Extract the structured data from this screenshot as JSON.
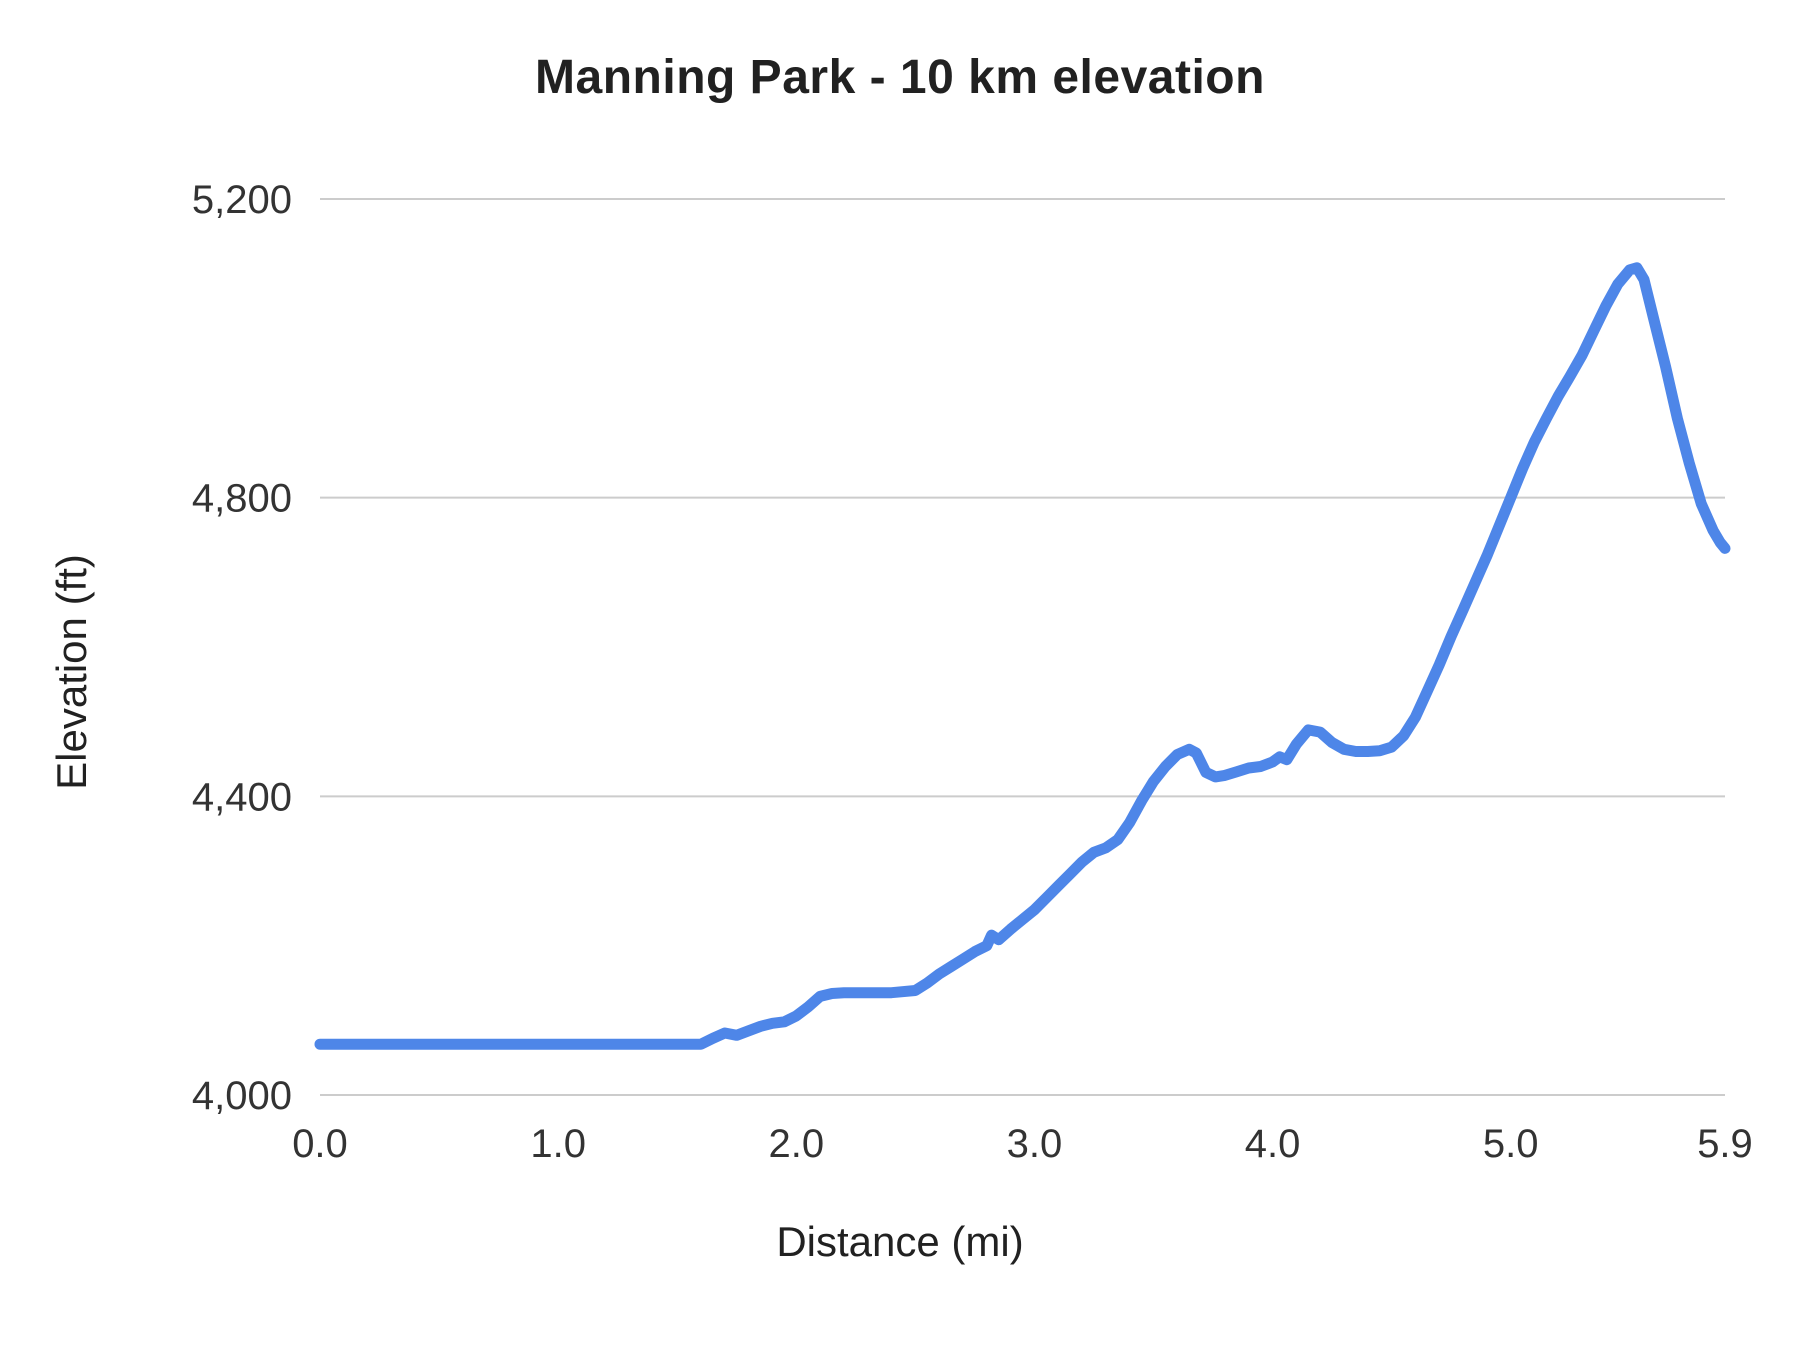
{
  "title": "Manning Park - 10 km  elevation",
  "chart_data": {
    "type": "line",
    "title": "Manning Park - 10 km  elevation",
    "xlabel": "Distance (mi)",
    "ylabel": "Elevation (ft)",
    "xlim": [
      0,
      5.9
    ],
    "ylim": [
      4000,
      5200
    ],
    "x_ticks": [
      0.0,
      1.0,
      2.0,
      3.0,
      4.0,
      5.0,
      5.9
    ],
    "x_tick_labels": [
      "0.0",
      "1.0",
      "2.0",
      "3.0",
      "4.0",
      "5.0",
      "5.9"
    ],
    "y_ticks": [
      4000,
      4400,
      4800,
      5200
    ],
    "y_tick_labels": [
      "4,000",
      "4,400",
      "4,800",
      "5,200"
    ],
    "grid": "horizontal",
    "legend": "none",
    "line_color": "#4e86e8",
    "grid_color": "#cccccc",
    "series": [
      {
        "name": "Elevation",
        "points": [
          [
            0.0,
            4068
          ],
          [
            0.1,
            4068
          ],
          [
            0.2,
            4068
          ],
          [
            0.3,
            4068
          ],
          [
            0.4,
            4068
          ],
          [
            0.5,
            4068
          ],
          [
            0.6,
            4068
          ],
          [
            0.7,
            4068
          ],
          [
            0.8,
            4068
          ],
          [
            0.9,
            4068
          ],
          [
            1.0,
            4068
          ],
          [
            1.1,
            4068
          ],
          [
            1.2,
            4068
          ],
          [
            1.3,
            4068
          ],
          [
            1.4,
            4068
          ],
          [
            1.5,
            4068
          ],
          [
            1.6,
            4068
          ],
          [
            1.65,
            4076
          ],
          [
            1.7,
            4083
          ],
          [
            1.75,
            4080
          ],
          [
            1.8,
            4086
          ],
          [
            1.85,
            4092
          ],
          [
            1.9,
            4096
          ],
          [
            1.95,
            4098
          ],
          [
            2.0,
            4106
          ],
          [
            2.05,
            4118
          ],
          [
            2.1,
            4132
          ],
          [
            2.15,
            4136
          ],
          [
            2.2,
            4137
          ],
          [
            2.3,
            4137
          ],
          [
            2.4,
            4137
          ],
          [
            2.5,
            4140
          ],
          [
            2.55,
            4150
          ],
          [
            2.6,
            4162
          ],
          [
            2.65,
            4172
          ],
          [
            2.7,
            4182
          ],
          [
            2.75,
            4192
          ],
          [
            2.8,
            4200
          ],
          [
            2.82,
            4214
          ],
          [
            2.85,
            4208
          ],
          [
            2.9,
            4222
          ],
          [
            2.95,
            4235
          ],
          [
            3.0,
            4248
          ],
          [
            3.05,
            4264
          ],
          [
            3.1,
            4280
          ],
          [
            3.15,
            4296
          ],
          [
            3.2,
            4312
          ],
          [
            3.25,
            4325
          ],
          [
            3.3,
            4331
          ],
          [
            3.35,
            4342
          ],
          [
            3.4,
            4365
          ],
          [
            3.45,
            4394
          ],
          [
            3.5,
            4420
          ],
          [
            3.55,
            4440
          ],
          [
            3.6,
            4456
          ],
          [
            3.65,
            4463
          ],
          [
            3.68,
            4458
          ],
          [
            3.72,
            4432
          ],
          [
            3.76,
            4426
          ],
          [
            3.8,
            4428
          ],
          [
            3.85,
            4433
          ],
          [
            3.9,
            4438
          ],
          [
            3.95,
            4440
          ],
          [
            4.0,
            4446
          ],
          [
            4.03,
            4453
          ],
          [
            4.06,
            4449
          ],
          [
            4.1,
            4470
          ],
          [
            4.15,
            4489
          ],
          [
            4.2,
            4486
          ],
          [
            4.25,
            4472
          ],
          [
            4.3,
            4463
          ],
          [
            4.35,
            4460
          ],
          [
            4.4,
            4460
          ],
          [
            4.45,
            4461
          ],
          [
            4.5,
            4466
          ],
          [
            4.55,
            4481
          ],
          [
            4.6,
            4506
          ],
          [
            4.65,
            4541
          ],
          [
            4.7,
            4576
          ],
          [
            4.75,
            4614
          ],
          [
            4.8,
            4650
          ],
          [
            4.85,
            4686
          ],
          [
            4.9,
            4722
          ],
          [
            4.95,
            4761
          ],
          [
            5.0,
            4800
          ],
          [
            5.05,
            4839
          ],
          [
            5.1,
            4875
          ],
          [
            5.15,
            4906
          ],
          [
            5.2,
            4936
          ],
          [
            5.25,
            4963
          ],
          [
            5.3,
            4991
          ],
          [
            5.35,
            5024
          ],
          [
            5.4,
            5057
          ],
          [
            5.45,
            5086
          ],
          [
            5.5,
            5105
          ],
          [
            5.53,
            5108
          ],
          [
            5.56,
            5092
          ],
          [
            5.6,
            5040
          ],
          [
            5.65,
            4976
          ],
          [
            5.7,
            4906
          ],
          [
            5.75,
            4846
          ],
          [
            5.8,
            4792
          ],
          [
            5.85,
            4756
          ],
          [
            5.88,
            4740
          ],
          [
            5.9,
            4732
          ]
        ]
      }
    ]
  }
}
